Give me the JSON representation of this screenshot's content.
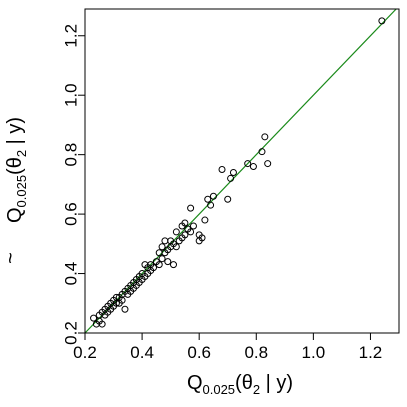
{
  "chart_data": {
    "type": "scatter",
    "xlabel": {
      "main": "Q",
      "sub": "0.025",
      "rest": "(θ",
      "sub2": "2",
      "end": " | y)"
    },
    "ylabel": {
      "accent": "~",
      "main": "Q",
      "sub": "0.025",
      "rest": "(θ",
      "sub2": "2",
      "end": " | y)"
    },
    "xlim": [
      0.2,
      1.3
    ],
    "ylim": [
      0.2,
      1.29
    ],
    "xticks": [
      0.2,
      0.4,
      0.6,
      0.8,
      1.0,
      1.2
    ],
    "xtick_labels": [
      "0.2",
      "0.4",
      "0.6",
      "0.8",
      "1.0",
      "1.2"
    ],
    "yticks": [
      0.2,
      0.4,
      0.6,
      0.8,
      1.0,
      1.2
    ],
    "ytick_labels": [
      "0.2",
      "0.4",
      "0.6",
      "0.8",
      "1.0",
      "1.2"
    ],
    "reference_line": {
      "intercept": 0,
      "slope": 1,
      "color": "#1a8a1a"
    },
    "marker": {
      "shape": "open-circle",
      "color": "#000000"
    },
    "points": [
      [
        0.23,
        0.25
      ],
      [
        0.24,
        0.23
      ],
      [
        0.25,
        0.26
      ],
      [
        0.25,
        0.24
      ],
      [
        0.26,
        0.27
      ],
      [
        0.26,
        0.23
      ],
      [
        0.27,
        0.26
      ],
      [
        0.27,
        0.28
      ],
      [
        0.28,
        0.27
      ],
      [
        0.28,
        0.29
      ],
      [
        0.29,
        0.28
      ],
      [
        0.29,
        0.3
      ],
      [
        0.3,
        0.29
      ],
      [
        0.3,
        0.31
      ],
      [
        0.31,
        0.3
      ],
      [
        0.31,
        0.32
      ],
      [
        0.32,
        0.3
      ],
      [
        0.32,
        0.32
      ],
      [
        0.33,
        0.31
      ],
      [
        0.33,
        0.33
      ],
      [
        0.34,
        0.28
      ],
      [
        0.34,
        0.34
      ],
      [
        0.35,
        0.33
      ],
      [
        0.35,
        0.35
      ],
      [
        0.36,
        0.34
      ],
      [
        0.36,
        0.36
      ],
      [
        0.37,
        0.35
      ],
      [
        0.37,
        0.37
      ],
      [
        0.38,
        0.36
      ],
      [
        0.38,
        0.38
      ],
      [
        0.39,
        0.37
      ],
      [
        0.39,
        0.39
      ],
      [
        0.4,
        0.38
      ],
      [
        0.4,
        0.4
      ],
      [
        0.41,
        0.39
      ],
      [
        0.41,
        0.43
      ],
      [
        0.42,
        0.4
      ],
      [
        0.42,
        0.42
      ],
      [
        0.43,
        0.41
      ],
      [
        0.43,
        0.43
      ],
      [
        0.44,
        0.42
      ],
      [
        0.45,
        0.44
      ],
      [
        0.46,
        0.43
      ],
      [
        0.46,
        0.47
      ],
      [
        0.47,
        0.45
      ],
      [
        0.47,
        0.49
      ],
      [
        0.48,
        0.47
      ],
      [
        0.48,
        0.51
      ],
      [
        0.49,
        0.48
      ],
      [
        0.49,
        0.44
      ],
      [
        0.5,
        0.49
      ],
      [
        0.5,
        0.51
      ],
      [
        0.51,
        0.5
      ],
      [
        0.51,
        0.43
      ],
      [
        0.52,
        0.49
      ],
      [
        0.52,
        0.54
      ],
      [
        0.53,
        0.51
      ],
      [
        0.54,
        0.52
      ],
      [
        0.54,
        0.56
      ],
      [
        0.55,
        0.53
      ],
      [
        0.55,
        0.57
      ],
      [
        0.56,
        0.55
      ],
      [
        0.57,
        0.54
      ],
      [
        0.57,
        0.62
      ],
      [
        0.58,
        0.56
      ],
      [
        0.6,
        0.51
      ],
      [
        0.6,
        0.53
      ],
      [
        0.61,
        0.52
      ],
      [
        0.62,
        0.58
      ],
      [
        0.63,
        0.65
      ],
      [
        0.64,
        0.63
      ],
      [
        0.65,
        0.66
      ],
      [
        0.68,
        0.75
      ],
      [
        0.7,
        0.65
      ],
      [
        0.71,
        0.72
      ],
      [
        0.72,
        0.74
      ],
      [
        0.77,
        0.77
      ],
      [
        0.79,
        0.76
      ],
      [
        0.82,
        0.81
      ],
      [
        0.83,
        0.86
      ],
      [
        0.84,
        0.77
      ],
      [
        1.24,
        1.25
      ]
    ]
  }
}
